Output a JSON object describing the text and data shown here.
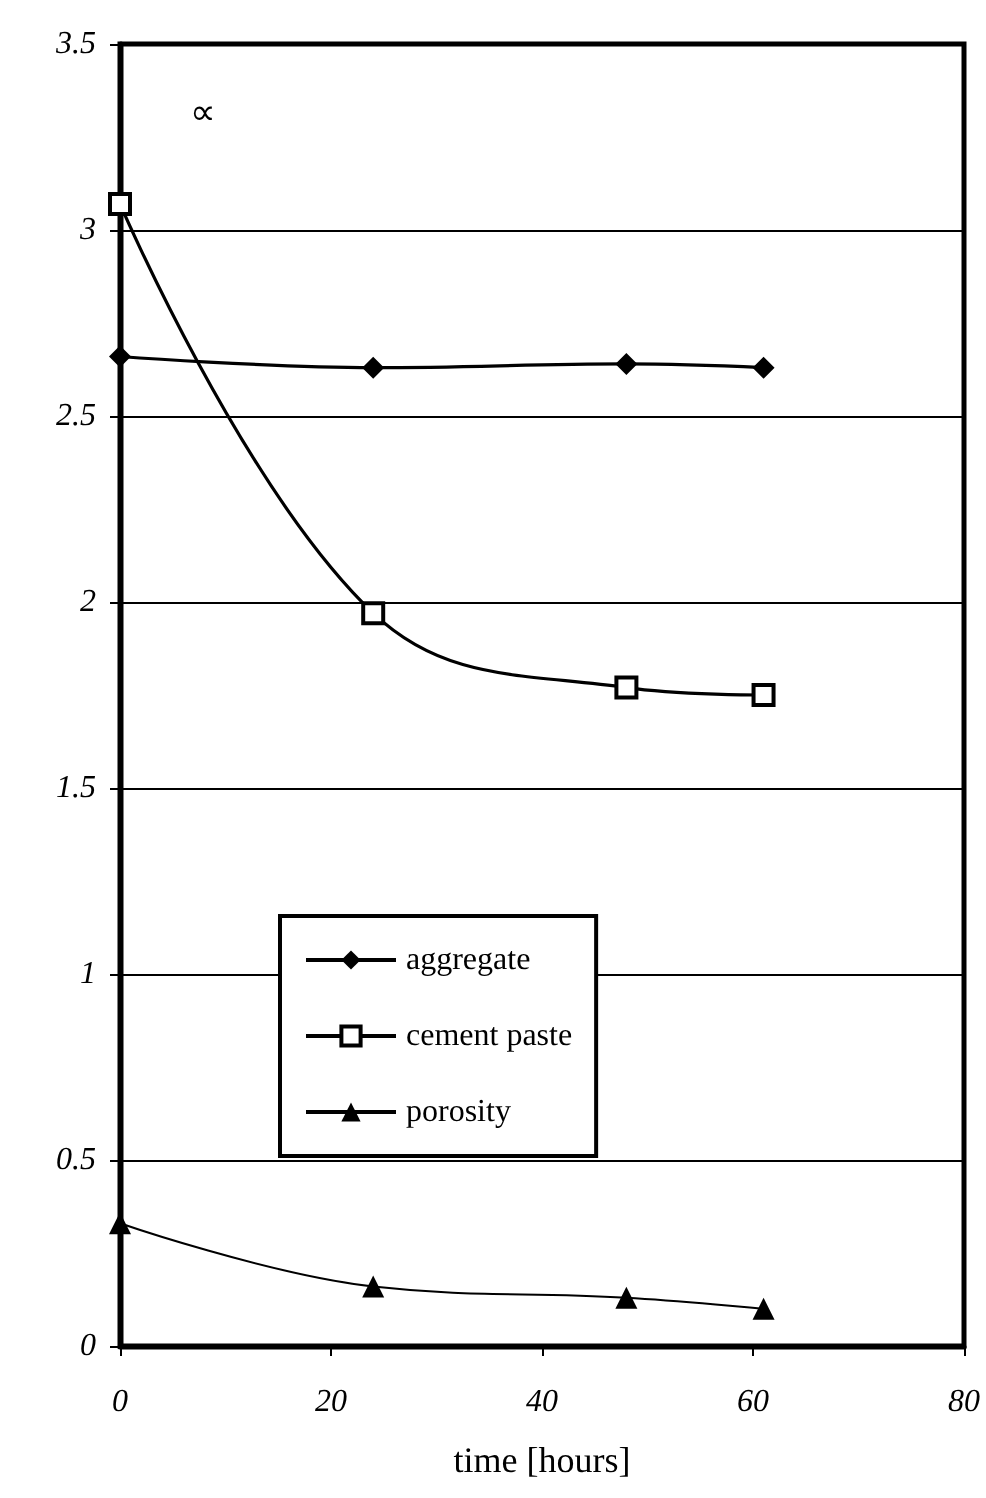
{
  "chart_data": {
    "type": "line",
    "xlabel": "time [hours]",
    "annotations": [
      "∝"
    ],
    "xlim": [
      0,
      80
    ],
    "xticks": [
      0,
      20,
      40,
      60,
      80
    ],
    "ylim": [
      0,
      3.5
    ],
    "yticks": [
      0,
      0.5,
      1,
      1.5,
      2,
      2.5,
      3,
      3.5
    ],
    "grid": "y",
    "legend": "bottom left",
    "line_style": "solid",
    "series": [
      {
        "name": "aggregate",
        "color": "#000000",
        "marker": "diamond",
        "x": [
          0,
          24,
          48,
          61
        ],
        "values": [
          2.66,
          2.63,
          2.64,
          2.63
        ]
      },
      {
        "name": "cement paste",
        "color": "#000000",
        "marker": "square",
        "x": [
          0,
          24,
          48,
          61
        ],
        "values": [
          3.07,
          1.97,
          1.77,
          1.75
        ]
      },
      {
        "name": "porosity",
        "color": "#000000",
        "marker": "triangle",
        "x": [
          0,
          24,
          48,
          61
        ],
        "values": [
          0.33,
          0.16,
          0.13,
          0.1
        ]
      }
    ]
  }
}
